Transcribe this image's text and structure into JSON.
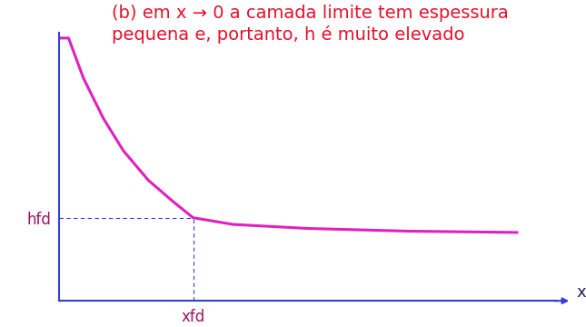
{
  "chart_data": {
    "type": "line",
    "annotation": "(b) em x → 0 a camada limite tem espessura pequena e, portanto, h é muito elevado",
    "x_label": "x",
    "x": [
      0,
      0.2,
      0.5,
      0.9,
      1.3,
      1.8,
      2.3,
      2.7,
      3.5,
      5,
      7,
      9.2
    ],
    "values": [
      9.8,
      9.8,
      8.3,
      6.8,
      5.6,
      4.5,
      3.7,
      3.1,
      2.85,
      2.7,
      2.6,
      2.55
    ],
    "color": "#e020c0",
    "xlim": [
      0,
      10
    ],
    "ylim": [
      0,
      10
    ],
    "xticks": [
      {
        "value": 2.7,
        "label": "xfd"
      }
    ],
    "yticks": [
      {
        "value": 3.1,
        "label": "hfd"
      }
    ],
    "grid": false
  }
}
